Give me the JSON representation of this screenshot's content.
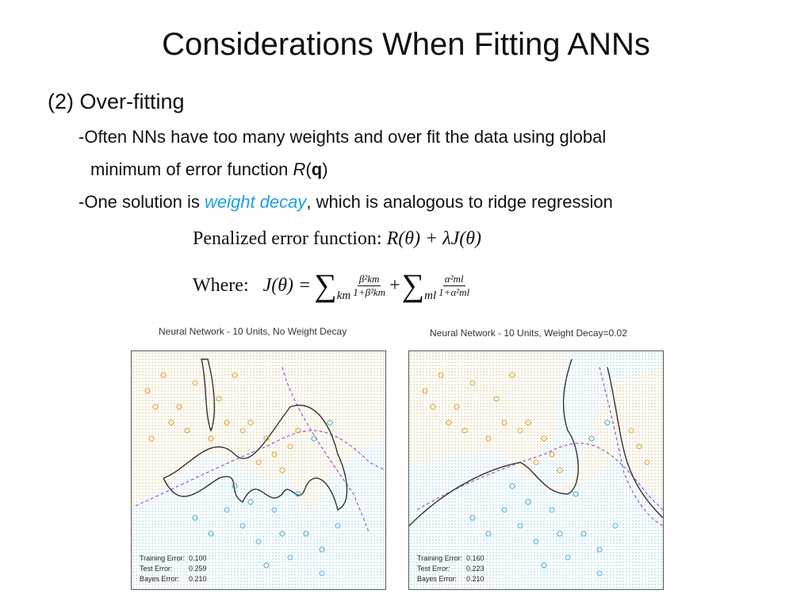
{
  "slide": {
    "title": "Considerations When Fitting ANNs",
    "heading": "(2) Over-fitting",
    "bullet1_line1": "-Often NNs have too many weights and over fit the data using global",
    "bullet1_line2_a": "minimum of error function ",
    "bullet1_line2_R": "R",
    "bullet1_line2_open": "(",
    "bullet1_line2_q": "q",
    "bullet1_line2_close": ")",
    "bullet2_a": "-One solution is ",
    "bullet2_accent": "weight decay",
    "bullet2_b": ", which is analogous to ridge regression",
    "accent_color": "#1ea0e0"
  },
  "equations": {
    "penalized_label": "Penalized error function:",
    "penalized_formula": "R(θ) + λJ(θ)",
    "where_label": "Where:",
    "where_lhs": "J(θ) =",
    "sum1_sub": "km",
    "frac1_num": "β²km",
    "frac1_den": "1+β²km",
    "plus": "+",
    "sum2_sub": "ml",
    "frac2_num": "α²ml",
    "frac2_den": "1+α²ml"
  },
  "panels": [
    {
      "title": "Neural Network - 10 Units, No Weight Decay",
      "training_label": "Training Error:",
      "training_value": "0.100",
      "test_label": "Test Error:",
      "test_value": "0.259",
      "bayes_label": "Bayes Error:",
      "bayes_value": "0.210"
    },
    {
      "title": "Neural Network - 10 Units, Weight Decay=0.02",
      "training_label": "Training Error:",
      "training_value": "0.160",
      "test_label": "Test Error:",
      "test_value": "0.223",
      "bayes_label": "Bayes Error:",
      "bayes_value": "0.210"
    }
  ],
  "colors": {
    "orange_class": "#e0a43a",
    "blue_class": "#4fb0d8",
    "bayes_boundary": "#9b59c7",
    "fitted_boundary": "#333333"
  }
}
